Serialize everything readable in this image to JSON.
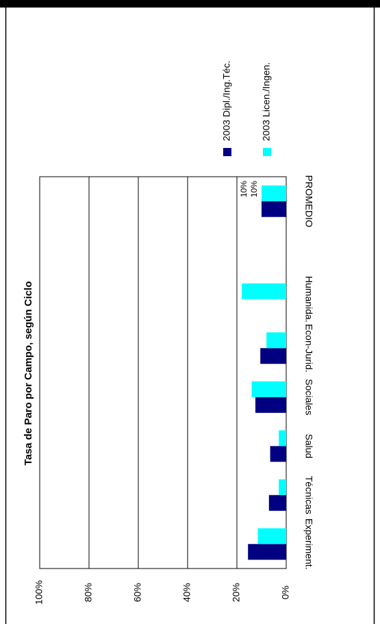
{
  "chart_data": {
    "type": "bar",
    "orientation": "horizontal",
    "title": "Tasa de Paro por Campo, según Ciclo",
    "categories": [
      "Experiment.",
      "Técnicas",
      "Salud",
      "Sociales",
      "Econ-Jurid.",
      "Humanida.",
      null,
      "PROMEDIO"
    ],
    "series": [
      {
        "name": "2003 Dipl./Ing.Téc.",
        "color": "#000080",
        "values": [
          15.5,
          7,
          6.5,
          12.5,
          10.5,
          0,
          null,
          10
        ],
        "value_labels": [
          null,
          null,
          null,
          null,
          null,
          null,
          null,
          "10%"
        ]
      },
      {
        "name": "2003 Licen./Ingen.",
        "color": "#00ffff",
        "values": [
          11.5,
          3,
          3,
          14,
          8,
          18,
          null,
          10
        ],
        "value_labels": [
          null,
          null,
          null,
          null,
          null,
          null,
          null,
          "10%"
        ]
      }
    ],
    "ylim": [
      0,
      100
    ],
    "yticks": [
      {
        "value": 0,
        "label": "0%"
      },
      {
        "value": 20,
        "label": "20%"
      },
      {
        "value": 40,
        "label": "40%"
      },
      {
        "value": 60,
        "label": "60%"
      },
      {
        "value": 80,
        "label": "80%"
      },
      {
        "value": 100,
        "label": "100%"
      }
    ],
    "grid": true
  }
}
